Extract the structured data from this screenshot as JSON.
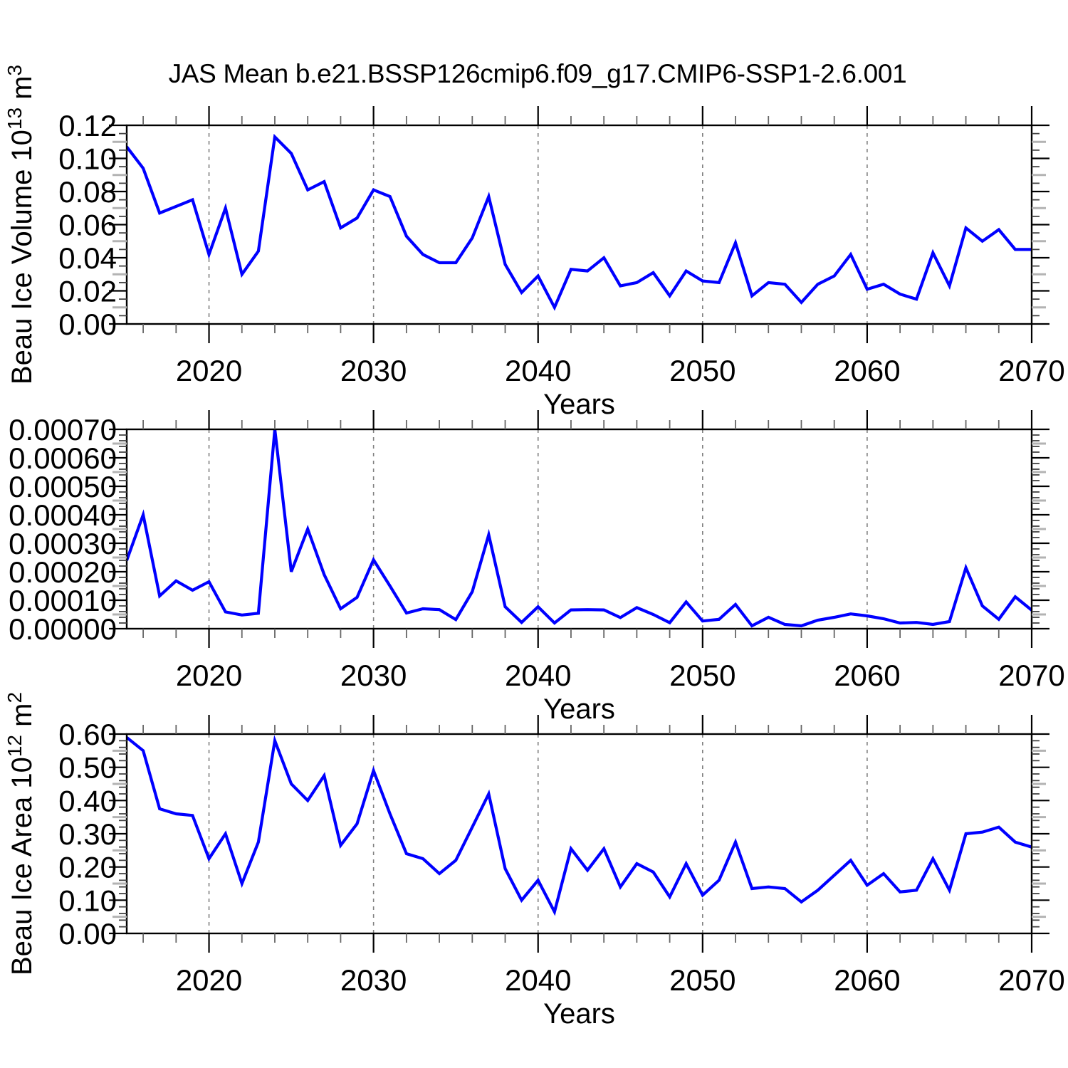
{
  "title": "JAS Mean b.e21.BSSP126cmip6.f09_g17.CMIP6-SSP1-2.6.001",
  "xlabel": "Years",
  "x_tick_labels": [
    "2020",
    "2030",
    "2040",
    "2050",
    "2060",
    "2070"
  ],
  "line_color": "#0000ff",
  "grid_color": "#808080",
  "chart_data": [
    {
      "type": "line",
      "title": "JAS Mean b.e21.BSSP126cmip6.f09_g17.CMIP6-SSP1-2.6.001",
      "xlabel": "Years",
      "ylabel": "Beau Ice Volume 10^13 m^3",
      "ylabel_parts": [
        {
          "t": "Beau Ice Volume 10",
          "sup": false
        },
        {
          "t": "13",
          "sup": true
        },
        {
          "t": " m",
          "sup": false
        },
        {
          "t": "3",
          "sup": true
        }
      ],
      "ylim": [
        0,
        0.12
      ],
      "ytick_step": 0.02,
      "minor_fracs": [
        0.25,
        0.75
      ],
      "ytick_labels": [
        "0.00",
        "0.02",
        "0.04",
        "0.06",
        "0.08",
        "0.10",
        "0.12"
      ],
      "legend": "none",
      "grid": "vertical dashed at decades 2020-2060",
      "x": [
        2015,
        2016,
        2017,
        2018,
        2019,
        2020,
        2021,
        2022,
        2023,
        2024,
        2025,
        2026,
        2027,
        2028,
        2029,
        2030,
        2031,
        2032,
        2033,
        2034,
        2035,
        2036,
        2037,
        2038,
        2039,
        2040,
        2041,
        2042,
        2043,
        2044,
        2045,
        2046,
        2047,
        2048,
        2049,
        2050,
        2051,
        2052,
        2053,
        2054,
        2055,
        2056,
        2057,
        2058,
        2059,
        2060,
        2061,
        2062,
        2063,
        2064,
        2065,
        2066,
        2067,
        2068,
        2069,
        2070
      ],
      "values": [
        0.107,
        0.094,
        0.067,
        0.071,
        0.075,
        0.042,
        0.07,
        0.03,
        0.044,
        0.113,
        0.103,
        0.081,
        0.086,
        0.058,
        0.064,
        0.081,
        0.077,
        0.053,
        0.042,
        0.037,
        0.037,
        0.052,
        0.077,
        0.036,
        0.019,
        0.029,
        0.01,
        0.033,
        0.032,
        0.04,
        0.023,
        0.025,
        0.031,
        0.017,
        0.032,
        0.026,
        0.025,
        0.049,
        0.017,
        0.025,
        0.024,
        0.013,
        0.024,
        0.029,
        0.042,
        0.021,
        0.024,
        0.018,
        0.015,
        0.043,
        0.023,
        0.058,
        0.05,
        0.057,
        0.045,
        0.045
      ]
    },
    {
      "type": "line",
      "xlabel": "Years",
      "ylabel": "",
      "ylabel_parts": [],
      "ylim": [
        0,
        0.0007
      ],
      "ytick_step": 0.0001,
      "minor_fracs": [
        0.2,
        0.4,
        0.6,
        0.8
      ],
      "ytick_labels": [
        "0.00000",
        "0.00010",
        "0.00020",
        "0.00030",
        "0.00040",
        "0.00050",
        "0.00060",
        "0.00070"
      ],
      "legend": "none",
      "grid": "vertical dashed at decades 2020-2060",
      "x": [
        2015,
        2016,
        2017,
        2018,
        2019,
        2020,
        2021,
        2022,
        2023,
        2024,
        2025,
        2026,
        2027,
        2028,
        2029,
        2030,
        2031,
        2032,
        2033,
        2034,
        2035,
        2036,
        2037,
        2038,
        2039,
        2040,
        2041,
        2042,
        2043,
        2044,
        2045,
        2046,
        2047,
        2048,
        2049,
        2050,
        2051,
        2052,
        2053,
        2054,
        2055,
        2056,
        2057,
        2058,
        2059,
        2060,
        2061,
        2062,
        2063,
        2064,
        2065,
        2066,
        2067,
        2068,
        2069,
        2070
      ],
      "values": [
        0.00024,
        0.0004,
        0.000115,
        0.000168,
        0.000135,
        0.000165,
        5.9e-05,
        4.8e-05,
        5.4e-05,
        0.0007,
        0.0002,
        0.00035,
        0.00019,
        7e-05,
        0.00011,
        0.000242,
        0.00015,
        5.5e-05,
        7e-05,
        6.7e-05,
        3.2e-05,
        0.00013,
        0.00033,
        7.7e-05,
        2.2e-05,
        7.7e-05,
        2e-05,
        6.6e-05,
        6.7e-05,
        6.6e-05,
        3.9e-05,
        7.4e-05,
        5e-05,
        2.1e-05,
        9.4e-05,
        2.7e-05,
        3.3e-05,
        8.5e-05,
        1e-05,
        4e-05,
        1.5e-05,
        1e-05,
        3e-05,
        4e-05,
        5.2e-05,
        4.5e-05,
        3.5e-05,
        2e-05,
        2.2e-05,
        1.5e-05,
        2.5e-05,
        0.000214,
        8e-05,
        3.3e-05,
        0.000112,
        6.5e-05
      ]
    },
    {
      "type": "line",
      "xlabel": "Years",
      "ylabel": "Beau Ice Area 10^12 m^2",
      "ylabel_parts": [
        {
          "t": "Beau Ice Area 10",
          "sup": false
        },
        {
          "t": "12",
          "sup": true
        },
        {
          "t": " m",
          "sup": false
        },
        {
          "t": "2",
          "sup": true
        }
      ],
      "ylim": [
        0,
        0.6
      ],
      "ytick_step": 0.1,
      "minor_fracs": [
        0.2,
        0.4,
        0.6,
        0.8
      ],
      "ytick_labels": [
        "0.00",
        "0.10",
        "0.20",
        "0.30",
        "0.40",
        "0.50",
        "0.60"
      ],
      "legend": "none",
      "grid": "vertical dashed at decades 2020-2060",
      "x": [
        2015,
        2016,
        2017,
        2018,
        2019,
        2020,
        2021,
        2022,
        2023,
        2024,
        2025,
        2026,
        2027,
        2028,
        2029,
        2030,
        2031,
        2032,
        2033,
        2034,
        2035,
        2036,
        2037,
        2038,
        2039,
        2040,
        2041,
        2042,
        2043,
        2044,
        2045,
        2046,
        2047,
        2048,
        2049,
        2050,
        2051,
        2052,
        2053,
        2054,
        2055,
        2056,
        2057,
        2058,
        2059,
        2060,
        2061,
        2062,
        2063,
        2064,
        2065,
        2066,
        2067,
        2068,
        2069,
        2070
      ],
      "values": [
        0.59,
        0.55,
        0.375,
        0.36,
        0.355,
        0.225,
        0.3,
        0.15,
        0.275,
        0.58,
        0.45,
        0.4,
        0.475,
        0.265,
        0.33,
        0.49,
        0.36,
        0.24,
        0.225,
        0.18,
        0.22,
        0.32,
        0.42,
        0.195,
        0.1,
        0.16,
        0.065,
        0.255,
        0.19,
        0.255,
        0.14,
        0.21,
        0.185,
        0.11,
        0.21,
        0.115,
        0.16,
        0.275,
        0.135,
        0.14,
        0.135,
        0.095,
        0.13,
        0.175,
        0.22,
        0.145,
        0.18,
        0.125,
        0.13,
        0.225,
        0.13,
        0.3,
        0.305,
        0.32,
        0.275,
        0.26
      ]
    }
  ]
}
